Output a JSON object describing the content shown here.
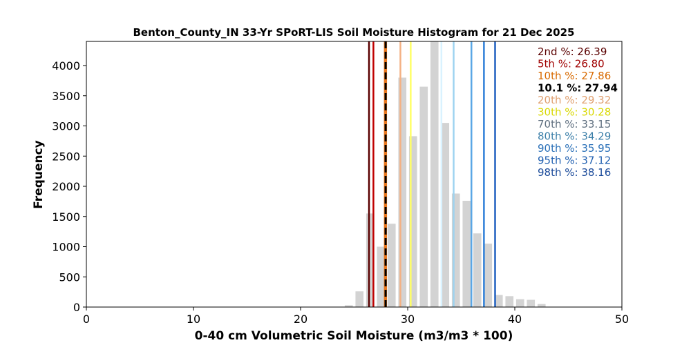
{
  "chart_data": {
    "type": "bar",
    "title": "Benton_County_IN 33-Yr SPoRT-LIS Soil Moisture Histogram for 21 Dec 2025",
    "xlabel": "0-40 cm Volumetric Soil Moisture (m3/m3 * 100)",
    "ylabel": "Frequency",
    "xlim": [
      0,
      50
    ],
    "ylim": [
      0,
      4400
    ],
    "xticks": [
      0,
      10,
      20,
      30,
      40,
      50
    ],
    "yticks": [
      0,
      500,
      1000,
      1500,
      2000,
      2500,
      3000,
      3500,
      4000
    ],
    "bar_color": "#d3d3d3",
    "bins": [
      {
        "x": 24.5,
        "value": 30
      },
      {
        "x": 25.5,
        "value": 260
      },
      {
        "x": 26.5,
        "value": 1550
      },
      {
        "x": 27.5,
        "value": 1000
      },
      {
        "x": 28.5,
        "value": 1380
      },
      {
        "x": 29.5,
        "value": 3800
      },
      {
        "x": 30.5,
        "value": 2830
      },
      {
        "x": 31.5,
        "value": 3650
      },
      {
        "x": 32.5,
        "value": 4400
      },
      {
        "x": 33.5,
        "value": 3050
      },
      {
        "x": 34.5,
        "value": 1880
      },
      {
        "x": 35.5,
        "value": 1760
      },
      {
        "x": 36.5,
        "value": 1220
      },
      {
        "x": 37.5,
        "value": 1050
      },
      {
        "x": 38.5,
        "value": 200
      },
      {
        "x": 39.5,
        "value": 180
      },
      {
        "x": 40.5,
        "value": 130
      },
      {
        "x": 41.5,
        "value": 120
      },
      {
        "x": 42.5,
        "value": 50
      }
    ],
    "percentiles": [
      {
        "label": "2nd %: 26.39",
        "value": 26.39,
        "color": "#5a0000",
        "text_color": "#5a0000",
        "dashed": false,
        "bold": false
      },
      {
        "label": "5th %: 26.80",
        "value": 26.8,
        "color": "#c00000",
        "text_color": "#a00000",
        "dashed": false,
        "bold": false
      },
      {
        "label": "10th %: 27.86",
        "value": 27.86,
        "color": "#e87820",
        "text_color": "#d86a00",
        "dashed": false,
        "bold": false
      },
      {
        "label": "10.1 %: 27.94",
        "value": 27.94,
        "color": "#000000",
        "text_color": "#000000",
        "dashed": true,
        "bold": true
      },
      {
        "label": "20th %: 29.32",
        "value": 29.32,
        "color": "#f4b183",
        "text_color": "#e0a070",
        "dashed": false,
        "bold": false
      },
      {
        "label": "30th %: 30.28",
        "value": 30.28,
        "color": "#ffff66",
        "text_color": "#d8d800",
        "dashed": false,
        "bold": false
      },
      {
        "label": "70th %: 33.15",
        "value": 33.15,
        "color": "#d9f2ff",
        "text_color": "#607080",
        "dashed": false,
        "bold": false
      },
      {
        "label": "80th %: 34.29",
        "value": 34.29,
        "color": "#9dd3f0",
        "text_color": "#3a7ea8",
        "dashed": false,
        "bold": false
      },
      {
        "label": "90th %: 35.95",
        "value": 35.95,
        "color": "#5aa7e6",
        "text_color": "#2a70b8",
        "dashed": false,
        "bold": false
      },
      {
        "label": "95th %: 37.12",
        "value": 37.12,
        "color": "#2f7fd8",
        "text_color": "#1f5fb0",
        "dashed": false,
        "bold": false
      },
      {
        "label": "98th %: 38.16",
        "value": 38.16,
        "color": "#1f5fbf",
        "text_color": "#1a4a9a",
        "dashed": false,
        "bold": false
      }
    ]
  }
}
